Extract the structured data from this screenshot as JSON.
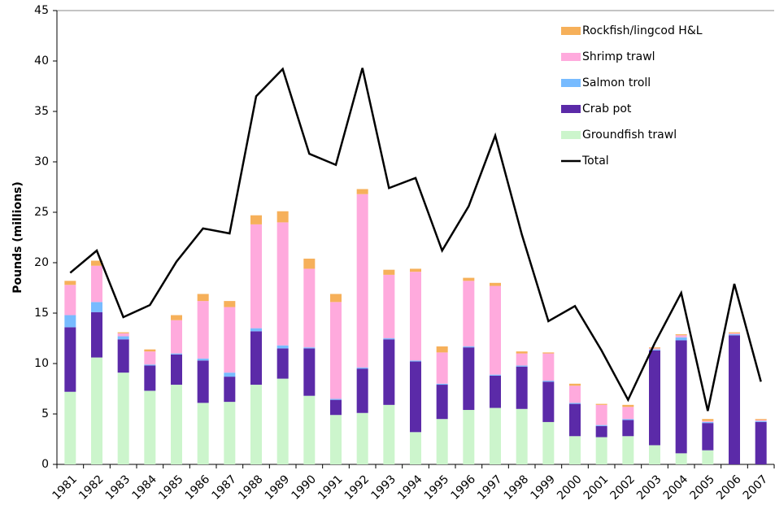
{
  "chart_data": {
    "type": "stacked-bar-line",
    "y_label": "Pounds (millions)",
    "categories": [
      "1981",
      "1982",
      "1983",
      "1984",
      "1985",
      "1986",
      "1987",
      "1988",
      "1989",
      "1990",
      "1991",
      "1992",
      "1993",
      "1994",
      "1995",
      "1996",
      "1997",
      "1998",
      "1999",
      "2000",
      "2001",
      "2002",
      "2003",
      "2004",
      "2005",
      "2006",
      "2007"
    ],
    "series": [
      {
        "name": "Groundfish trawl",
        "color": "#ccf5cc",
        "type": "bar",
        "values": [
          7.2,
          10.6,
          9.1,
          7.3,
          7.9,
          6.1,
          6.2,
          7.9,
          8.5,
          6.8,
          4.9,
          5.1,
          5.9,
          3.2,
          4.5,
          5.4,
          5.6,
          5.5,
          4.2,
          2.8,
          2.7,
          2.8,
          1.9,
          1.1,
          1.4,
          0,
          0
        ]
      },
      {
        "name": "Crab pot",
        "color": "#5b2aa8",
        "type": "bar",
        "values": [
          6.4,
          4.5,
          3.3,
          2.5,
          3.0,
          4.2,
          2.5,
          5.3,
          3.0,
          4.7,
          1.5,
          4.4,
          6.5,
          7.0,
          3.4,
          6.2,
          3.2,
          4.2,
          4.0,
          3.2,
          1.1,
          1.6,
          9.4,
          11.2,
          2.7,
          12.8,
          4.2
        ]
      },
      {
        "name": "Salmon troll",
        "color": "#77bbff",
        "type": "bar",
        "values": [
          1.2,
          1.0,
          0.3,
          0.1,
          0.1,
          0.2,
          0.4,
          0.3,
          0.3,
          0.1,
          0.1,
          0.1,
          0.1,
          0.1,
          0.1,
          0.1,
          0.1,
          0.1,
          0.1,
          0.1,
          0.1,
          0.1,
          0.1,
          0.3,
          0.1,
          0.1,
          0.1
        ]
      },
      {
        "name": "Shrimp trawl",
        "color": "#ffaadd",
        "type": "bar",
        "values": [
          3.0,
          3.6,
          0.3,
          1.3,
          3.3,
          5.7,
          6.5,
          10.3,
          12.2,
          7.8,
          9.6,
          17.2,
          6.3,
          8.8,
          3.1,
          6.5,
          8.8,
          1.2,
          2.7,
          1.7,
          2.0,
          1.2,
          0.1,
          0.2,
          0.1,
          0.1,
          0.1
        ]
      },
      {
        "name": "Rockfish/lingcod H&L",
        "color": "#f6b05a",
        "type": "bar",
        "values": [
          0.4,
          0.5,
          0.1,
          0.2,
          0.5,
          0.7,
          0.6,
          0.9,
          1.1,
          1.0,
          0.8,
          0.5,
          0.5,
          0.3,
          0.6,
          0.3,
          0.3,
          0.2,
          0.1,
          0.2,
          0.1,
          0.2,
          0.1,
          0.1,
          0.2,
          0.1,
          0.1
        ]
      },
      {
        "name": "Total",
        "color": "#000000",
        "type": "line",
        "values": [
          19.0,
          21.2,
          14.6,
          15.8,
          20.1,
          23.4,
          22.9,
          36.5,
          39.2,
          30.8,
          29.7,
          39.3,
          27.4,
          28.4,
          21.2,
          25.6,
          32.6,
          22.8,
          14.2,
          15.7,
          11.3,
          6.4,
          12.0,
          17.0,
          5.3,
          17.9,
          8.2
        ]
      }
    ],
    "ylim": [
      0,
      45
    ],
    "yticks": [
      0,
      5,
      10,
      15,
      20,
      25,
      30,
      35,
      40,
      45
    ],
    "grid": false,
    "legend": "top-right"
  }
}
